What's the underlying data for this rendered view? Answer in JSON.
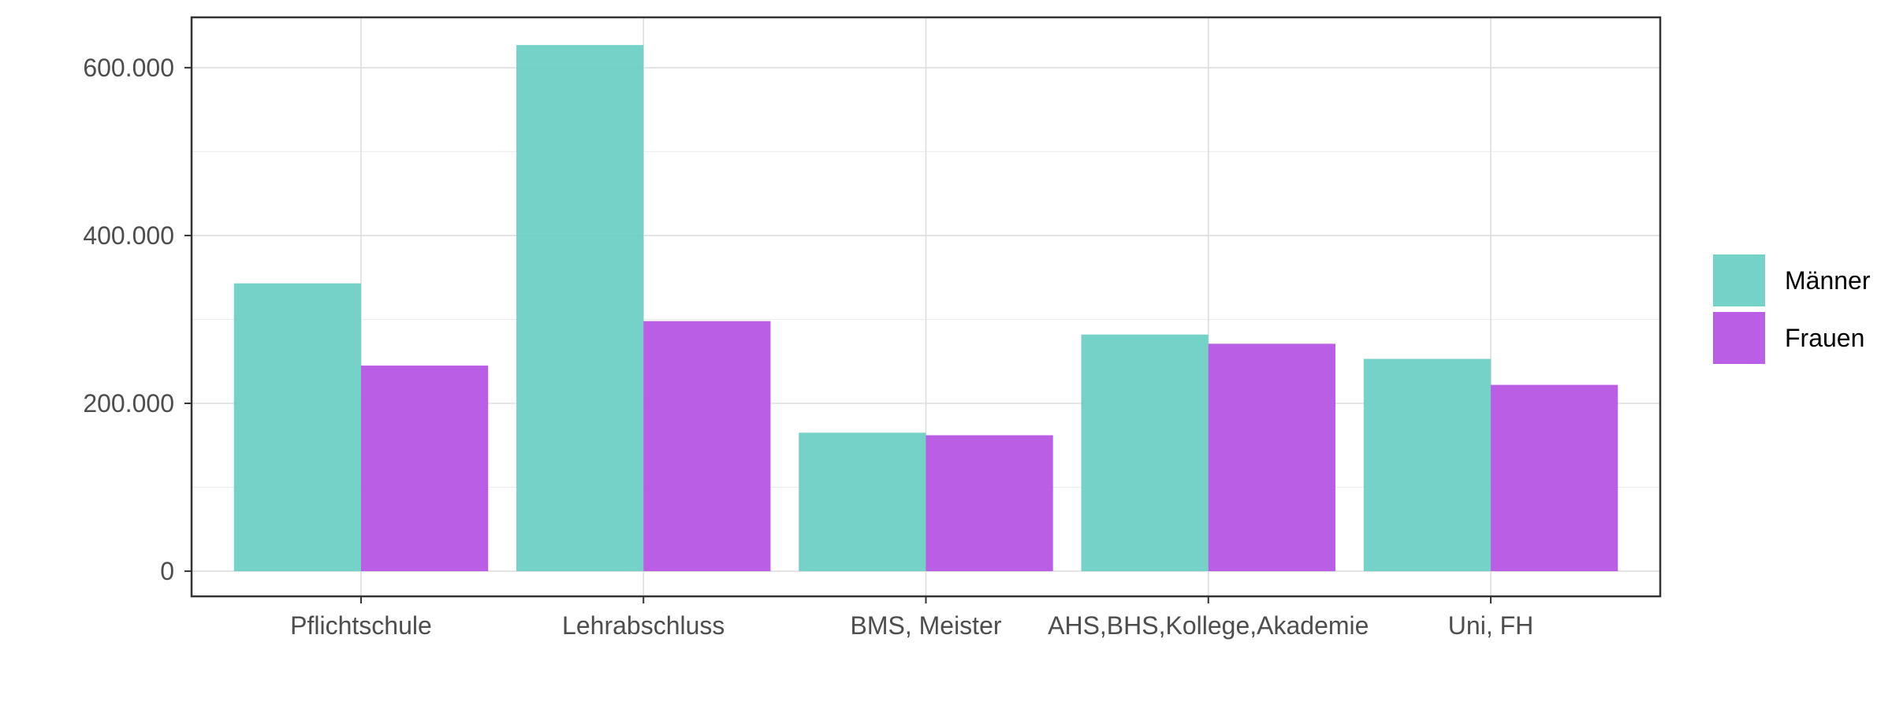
{
  "chart_data": {
    "type": "bar",
    "categories": [
      "Pflichtschule",
      "Lehrabschluss",
      "BMS, Meister",
      "AHS,BHS,Kollege,Akademie",
      "Uni, FH"
    ],
    "series": [
      {
        "name": "Männer",
        "color": "#66CDC3",
        "values": [
          343000,
          627000,
          165000,
          282000,
          253000
        ]
      },
      {
        "name": "Frauen",
        "color": "#B34EE2",
        "values": [
          245000,
          298000,
          162000,
          271000,
          222000
        ]
      }
    ],
    "y_ticks": [
      0,
      200000,
      400000,
      600000
    ],
    "y_tick_labels": [
      "0",
      "200.000",
      "400.000",
      "600.000"
    ],
    "ylim": [
      -30000,
      660000
    ],
    "grid": true,
    "legend_position": "right",
    "title": "",
    "xlabel": "",
    "ylabel": ""
  }
}
